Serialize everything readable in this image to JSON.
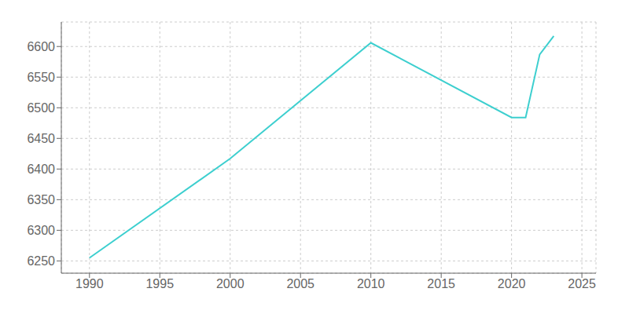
{
  "chart_data": {
    "type": "line",
    "x": [
      1990,
      2000,
      2010,
      2020,
      2021,
      2022,
      2023
    ],
    "values": [
      6255,
      6417,
      6606,
      6484,
      6484,
      6587,
      6617
    ],
    "color": "#3DCFCF",
    "xlim": [
      1988,
      2026
    ],
    "ylim": [
      6230,
      6640
    ],
    "xticks": [
      1990,
      1995,
      2000,
      2005,
      2010,
      2015,
      2020,
      2025
    ],
    "yticks": [
      6250,
      6300,
      6350,
      6400,
      6450,
      6500,
      6550,
      6600
    ],
    "grid": true
  }
}
